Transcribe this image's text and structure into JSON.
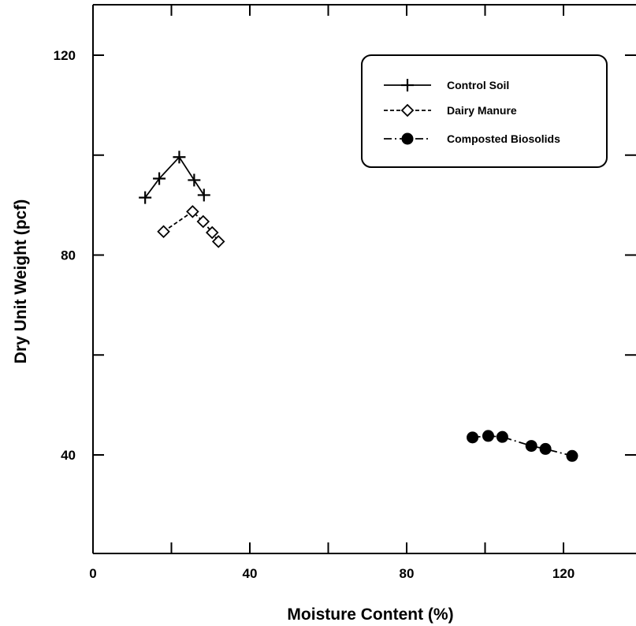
{
  "chart_data": {
    "type": "scatter",
    "xlabel": "Moisture Content (%)",
    "ylabel": "Dry Unit Weight (pcf)",
    "xlim": [
      0,
      140
    ],
    "ylim": [
      20,
      130
    ],
    "x_ticks": [
      0,
      40,
      80,
      120
    ],
    "x_minor_ticks": [
      20,
      60,
      100
    ],
    "y_ticks": [
      40,
      80,
      120
    ],
    "y_minor_ticks": [
      60,
      100
    ],
    "grid": false,
    "legend_position": "top-right",
    "series": [
      {
        "name": "Control Soil",
        "marker": "plus",
        "line": "solid",
        "x": [
          13.3,
          16.9,
          22.0,
          25.8,
          28.3
        ],
        "y": [
          91.5,
          95.3,
          99.6,
          95.0,
          92.0
        ]
      },
      {
        "name": "Dairy Manure",
        "marker": "diamond-open",
        "line": "dashed",
        "x": [
          18.0,
          25.4,
          28.1,
          30.4,
          32.0
        ],
        "y": [
          84.7,
          88.7,
          86.7,
          84.5,
          82.7
        ]
      },
      {
        "name": "Composted Biosolids",
        "marker": "circle-filled",
        "line": "dash-dot",
        "x": [
          96.8,
          100.8,
          104.4,
          111.8,
          115.4,
          122.2
        ],
        "y": [
          43.5,
          43.8,
          43.6,
          41.8,
          41.2,
          39.8
        ]
      }
    ]
  }
}
